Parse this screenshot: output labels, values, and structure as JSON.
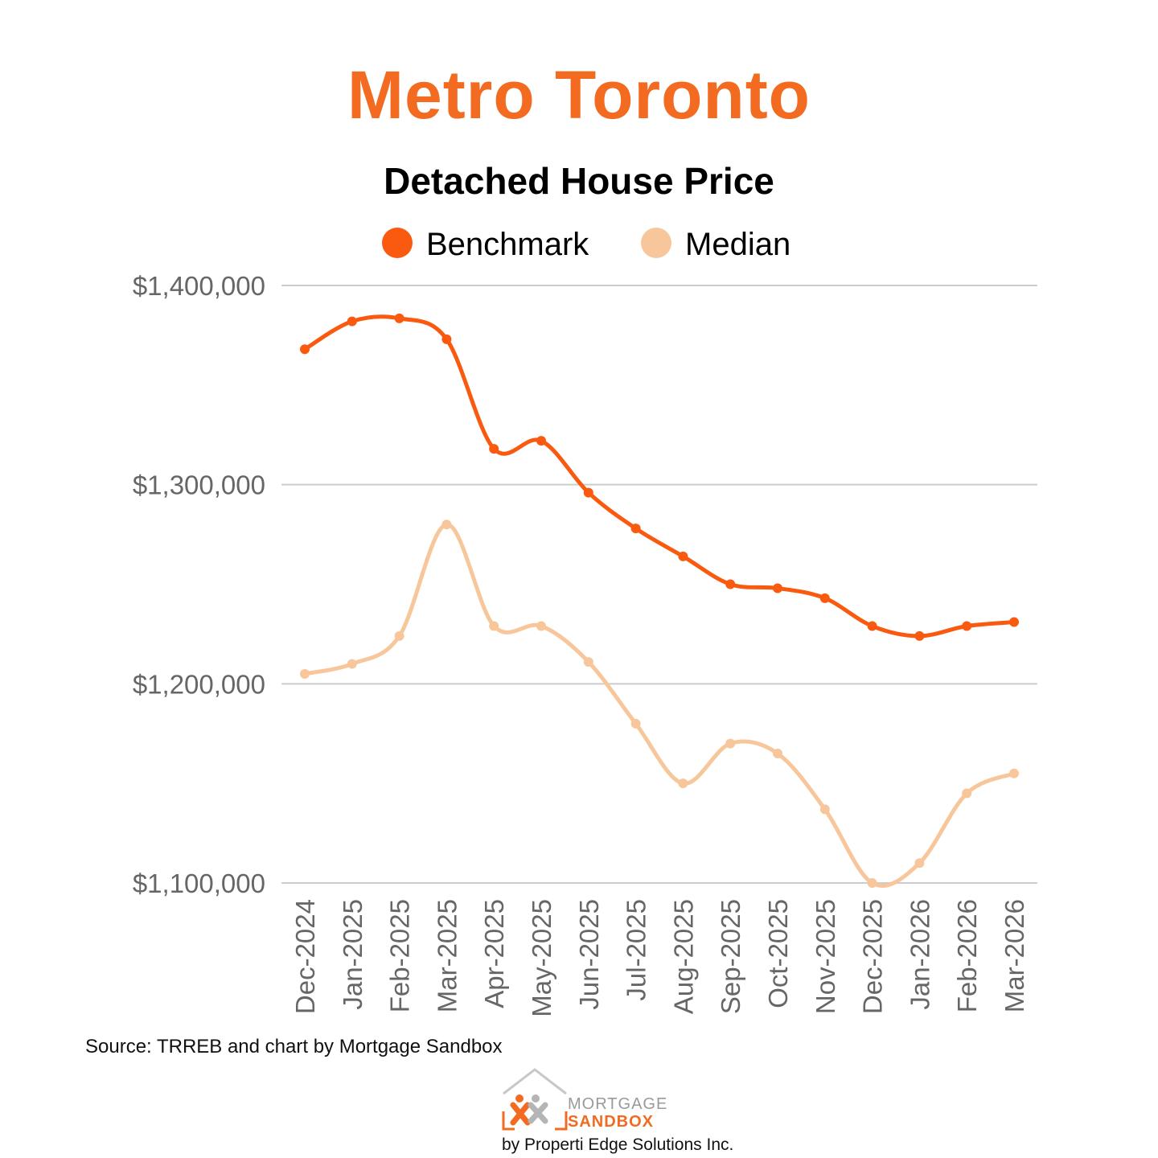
{
  "header": {
    "title": "Metro Toronto",
    "subtitle": "Detached House Price"
  },
  "chart_data": {
    "type": "line",
    "title": "Detached House Price",
    "xlabel": "",
    "ylabel": "",
    "ylim": [
      1100000,
      1400000
    ],
    "yticks": [
      1100000,
      1200000,
      1300000,
      1400000
    ],
    "ytick_labels": [
      "$1,100,000",
      "$1,200,000",
      "$1,300,000",
      "$1,400,000"
    ],
    "grid": true,
    "legend_position": "top-center",
    "categories": [
      "Dec-2024",
      "Jan-2025",
      "Feb-2025",
      "Mar-2025",
      "Apr-2025",
      "May-2025",
      "Jun-2025",
      "Jul-2025",
      "Aug-2025",
      "Sep-2025",
      "Oct-2025",
      "Nov-2025",
      "Dec-2025",
      "Jan-2026",
      "Feb-2026",
      "Mar-2026"
    ],
    "series": [
      {
        "name": "Benchmark",
        "color": "#fa5a0f",
        "values": [
          1368000,
          1382000,
          1383500,
          1373000,
          1318000,
          1322000,
          1296000,
          1278000,
          1264000,
          1250000,
          1248000,
          1243000,
          1229000,
          1224000,
          1229000,
          1231000
        ]
      },
      {
        "name": "Median",
        "color": "#f7c79b",
        "values": [
          1205000,
          1210000,
          1224000,
          1280000,
          1229000,
          1229000,
          1211000,
          1180000,
          1150000,
          1170000,
          1165000,
          1137000,
          1100000,
          1110000,
          1145000,
          1155000
        ]
      }
    ]
  },
  "footer": {
    "source": "Source: TRREB and chart by Mortgage Sandbox",
    "logo_line1": "MORTGAGE",
    "logo_line2": "SANDBOX",
    "logo_byline": "by Properti Edge Solutions Inc."
  },
  "colors": {
    "title": "#f26b21",
    "grid": "#cccccc",
    "axis_text": "#666666"
  }
}
